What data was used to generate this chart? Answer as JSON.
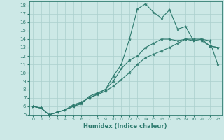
{
  "xlabel": "Humidex (Indice chaleur)",
  "xlim": [
    -0.5,
    23.5
  ],
  "ylim": [
    5,
    18.5
  ],
  "xticks": [
    0,
    1,
    2,
    3,
    4,
    5,
    6,
    7,
    8,
    9,
    10,
    11,
    12,
    13,
    14,
    15,
    16,
    17,
    18,
    19,
    20,
    21,
    22,
    23
  ],
  "yticks": [
    5,
    6,
    7,
    8,
    9,
    10,
    11,
    12,
    13,
    14,
    15,
    16,
    17,
    18
  ],
  "bg_color": "#cce8e6",
  "grid_color": "#aacfcd",
  "line_color": "#2d7a6e",
  "line1_x": [
    0,
    1,
    2,
    3,
    4,
    5,
    6,
    7,
    8,
    9,
    10,
    11,
    12,
    13,
    14,
    15,
    16,
    17,
    18,
    19,
    20,
    21,
    22,
    23
  ],
  "line1_y": [
    6.0,
    5.8,
    5.0,
    5.3,
    5.6,
    6.0,
    6.3,
    7.2,
    7.6,
    8.0,
    9.6,
    11.0,
    14.0,
    17.6,
    18.2,
    17.2,
    16.5,
    17.5,
    15.2,
    15.5,
    13.8,
    14.0,
    13.2,
    13.0
  ],
  "line2_x": [
    0,
    1,
    2,
    3,
    4,
    5,
    6,
    7,
    8,
    9,
    10,
    11,
    12,
    13,
    14,
    15,
    16,
    17,
    18,
    19,
    20,
    21,
    22,
    23
  ],
  "line2_y": [
    6.0,
    5.8,
    5.0,
    5.3,
    5.6,
    6.2,
    6.5,
    7.0,
    7.5,
    8.0,
    9.0,
    10.5,
    11.5,
    12.0,
    13.0,
    13.5,
    14.0,
    14.0,
    13.8,
    14.0,
    13.8,
    13.8,
    13.2,
    13.0
  ],
  "line3_x": [
    0,
    1,
    2,
    3,
    4,
    5,
    6,
    7,
    8,
    9,
    10,
    11,
    12,
    13,
    14,
    15,
    16,
    17,
    18,
    19,
    20,
    21,
    22,
    23
  ],
  "line3_y": [
    6.0,
    5.8,
    5.0,
    5.3,
    5.6,
    6.0,
    6.5,
    7.0,
    7.4,
    7.8,
    8.4,
    9.2,
    10.0,
    11.0,
    11.8,
    12.2,
    12.6,
    13.0,
    13.5,
    14.0,
    14.0,
    14.0,
    13.8,
    11.0
  ]
}
